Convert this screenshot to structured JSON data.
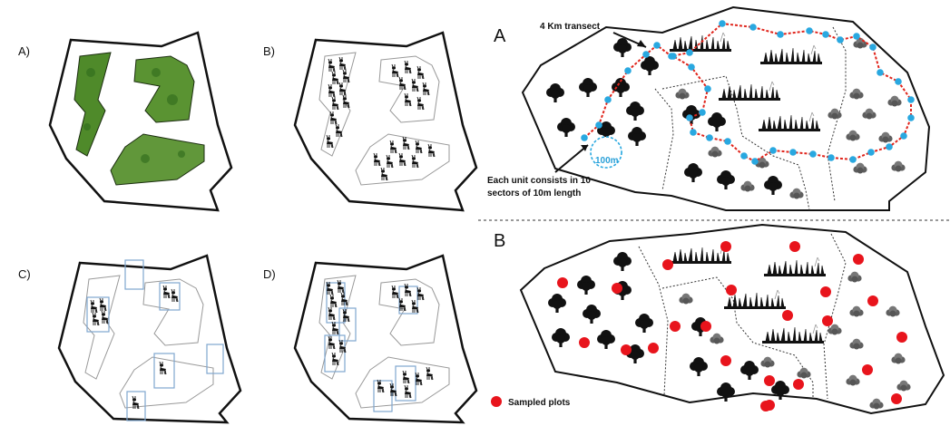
{
  "panels": {
    "a_label": "A)",
    "b_label": "B)",
    "c_label": "C)",
    "d_label": "D)"
  },
  "right": {
    "a_label": "A",
    "b_label": "B",
    "transect_label": "4 Km transect",
    "unit_label_line1": "Each unit consists in 10",
    "unit_label_line2": "sectors of 10m length",
    "scale_label": "100m",
    "legend_label": "Sampled plots"
  },
  "colors": {
    "transect": "#e0241b",
    "waypoint": "#29a8e0",
    "plot": "#e8141c",
    "forest_green": "#4f8a2a"
  },
  "icons": {
    "tree": "tree-icon",
    "bush": "bush-icon",
    "grass": "grass-icon",
    "antelope": "antelope-icon"
  }
}
